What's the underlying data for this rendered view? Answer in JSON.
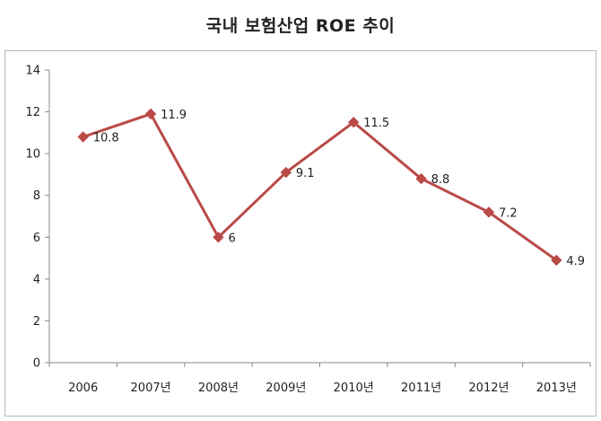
{
  "chart_data": {
    "type": "line",
    "title": "국내 보험산업 ROE 추이",
    "xlabel": "",
    "ylabel": "",
    "categories": [
      "2006",
      "2007년",
      "2008년",
      "2009년",
      "2010년",
      "2011년",
      "2012년",
      "2013년"
    ],
    "series": [
      {
        "values": [
          10.8,
          11.9,
          6,
          9.1,
          11.5,
          8.8,
          7.2,
          4.9
        ],
        "data_labels": [
          "10.8",
          "11.9",
          "6",
          "9.1",
          "11.5",
          "8.8",
          "7.2",
          "4.9"
        ],
        "color": "#b94a48",
        "marker": "diamond"
      }
    ],
    "ylim": [
      0,
      14
    ],
    "yticks": [
      "0",
      "2",
      "4",
      "6",
      "8",
      "10",
      "12",
      "14"
    ],
    "grid": false,
    "legend": "none"
  }
}
